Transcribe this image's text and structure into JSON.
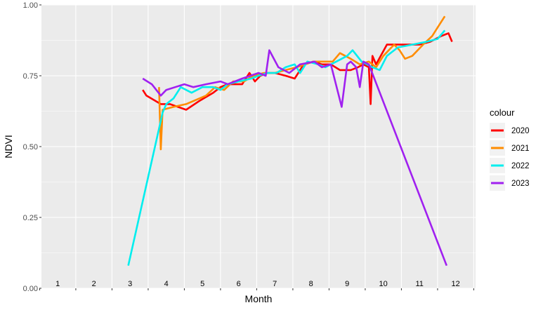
{
  "chart_data": {
    "type": "line",
    "xlabel": "Month",
    "ylabel": "NDVI",
    "xlim": [
      0.55,
      12.55
    ],
    "ylim": [
      0,
      1
    ],
    "x_ticks": [
      {
        "value": 1,
        "label": "1"
      },
      {
        "value": 2,
        "label": "2"
      },
      {
        "value": 3,
        "label": "3"
      },
      {
        "value": 4,
        "label": "4"
      },
      {
        "value": 5,
        "label": "5"
      },
      {
        "value": 6,
        "label": "6"
      },
      {
        "value": 7,
        "label": "7"
      },
      {
        "value": 8,
        "label": "8"
      },
      {
        "value": 9,
        "label": "9"
      },
      {
        "value": 10,
        "label": "10"
      },
      {
        "value": 11,
        "label": "11"
      },
      {
        "value": 12,
        "label": "12"
      }
    ],
    "y_ticks": [
      {
        "value": 0,
        "label": "0.00"
      },
      {
        "value": 0.25,
        "label": "0.25"
      },
      {
        "value": 0.5,
        "label": "0.50"
      },
      {
        "value": 0.75,
        "label": "0.75"
      },
      {
        "value": 1,
        "label": "1.00"
      }
    ],
    "grid": true,
    "background": "#ebebeb",
    "legend": {
      "title": "colour",
      "position": "right"
    },
    "series": [
      {
        "name": "2020",
        "color": "#ff0000",
        "points": [
          [
            3.35,
            0.7
          ],
          [
            3.45,
            0.68
          ],
          [
            3.85,
            0.65
          ],
          [
            4.1,
            0.65
          ],
          [
            4.55,
            0.63
          ],
          [
            4.9,
            0.66
          ],
          [
            5.3,
            0.69
          ],
          [
            5.5,
            0.71
          ],
          [
            5.7,
            0.72
          ],
          [
            6.1,
            0.72
          ],
          [
            6.3,
            0.76
          ],
          [
            6.45,
            0.73
          ],
          [
            6.6,
            0.75
          ],
          [
            6.8,
            0.76
          ],
          [
            7.0,
            0.76
          ],
          [
            7.3,
            0.75
          ],
          [
            7.55,
            0.74
          ],
          [
            7.8,
            0.79
          ],
          [
            8.1,
            0.8
          ],
          [
            8.3,
            0.79
          ],
          [
            8.55,
            0.79
          ],
          [
            8.8,
            0.77
          ],
          [
            9.1,
            0.77
          ],
          [
            9.3,
            0.78
          ],
          [
            9.45,
            0.79
          ],
          [
            9.6,
            0.78
          ],
          [
            9.65,
            0.65
          ],
          [
            9.7,
            0.82
          ],
          [
            9.8,
            0.79
          ],
          [
            10.1,
            0.86
          ],
          [
            10.4,
            0.86
          ],
          [
            10.7,
            0.86
          ],
          [
            11.0,
            0.86
          ],
          [
            11.3,
            0.87
          ],
          [
            11.6,
            0.89
          ],
          [
            11.8,
            0.9
          ],
          [
            11.9,
            0.87
          ]
        ]
      },
      {
        "name": "2021",
        "color": "#ff8c00",
        "points": [
          [
            3.8,
            0.71
          ],
          [
            3.85,
            0.49
          ],
          [
            3.9,
            0.63
          ],
          [
            4.2,
            0.64
          ],
          [
            4.55,
            0.65
          ],
          [
            5.1,
            0.68
          ],
          [
            5.35,
            0.71
          ],
          [
            5.6,
            0.7
          ],
          [
            5.85,
            0.73
          ],
          [
            6.15,
            0.73
          ],
          [
            6.4,
            0.75
          ],
          [
            6.7,
            0.76
          ],
          [
            7.0,
            0.76
          ],
          [
            7.3,
            0.77
          ],
          [
            7.6,
            0.78
          ],
          [
            7.85,
            0.79
          ],
          [
            8.05,
            0.8
          ],
          [
            8.3,
            0.8
          ],
          [
            8.6,
            0.8
          ],
          [
            8.8,
            0.83
          ],
          [
            9.1,
            0.81
          ],
          [
            9.35,
            0.79
          ],
          [
            9.6,
            0.8
          ],
          [
            9.8,
            0.78
          ],
          [
            10.0,
            0.82
          ],
          [
            10.3,
            0.86
          ],
          [
            10.45,
            0.84
          ],
          [
            10.6,
            0.81
          ],
          [
            10.8,
            0.82
          ],
          [
            11.1,
            0.86
          ],
          [
            11.35,
            0.89
          ],
          [
            11.5,
            0.92
          ],
          [
            11.7,
            0.96
          ]
        ]
      },
      {
        "name": "2022",
        "color": "#00eeee",
        "points": [
          [
            2.95,
            0.08
          ],
          [
            3.9,
            0.62
          ],
          [
            4.0,
            0.65
          ],
          [
            4.2,
            0.67
          ],
          [
            4.4,
            0.71
          ],
          [
            4.7,
            0.69
          ],
          [
            5.0,
            0.71
          ],
          [
            5.3,
            0.71
          ],
          [
            5.5,
            0.7
          ],
          [
            5.7,
            0.72
          ],
          [
            6.0,
            0.73
          ],
          [
            6.35,
            0.74
          ],
          [
            6.55,
            0.75
          ],
          [
            6.8,
            0.76
          ],
          [
            7.05,
            0.76
          ],
          [
            7.3,
            0.78
          ],
          [
            7.55,
            0.79
          ],
          [
            7.7,
            0.76
          ],
          [
            7.9,
            0.8
          ],
          [
            8.2,
            0.79
          ],
          [
            8.4,
            0.78
          ],
          [
            8.7,
            0.8
          ],
          [
            9.0,
            0.82
          ],
          [
            9.15,
            0.84
          ],
          [
            9.4,
            0.8
          ],
          [
            9.7,
            0.78
          ],
          [
            9.9,
            0.77
          ],
          [
            10.1,
            0.82
          ],
          [
            10.4,
            0.85
          ],
          [
            10.8,
            0.86
          ],
          [
            11.2,
            0.87
          ],
          [
            11.5,
            0.88
          ],
          [
            11.7,
            0.91
          ]
        ]
      },
      {
        "name": "2023",
        "color": "#a020f0",
        "points": [
          [
            3.35,
            0.74
          ],
          [
            3.6,
            0.72
          ],
          [
            3.85,
            0.68
          ],
          [
            4.0,
            0.7
          ],
          [
            4.5,
            0.72
          ],
          [
            4.75,
            0.71
          ],
          [
            5.1,
            0.72
          ],
          [
            5.5,
            0.73
          ],
          [
            5.7,
            0.72
          ],
          [
            6.1,
            0.74
          ],
          [
            6.55,
            0.76
          ],
          [
            6.75,
            0.75
          ],
          [
            6.85,
            0.84
          ],
          [
            7.1,
            0.78
          ],
          [
            7.4,
            0.76
          ],
          [
            7.7,
            0.79
          ],
          [
            8.1,
            0.8
          ],
          [
            8.3,
            0.78
          ],
          [
            8.55,
            0.79
          ],
          [
            8.85,
            0.64
          ],
          [
            9.0,
            0.79
          ],
          [
            9.1,
            0.8
          ],
          [
            9.25,
            0.78
          ],
          [
            9.35,
            0.71
          ],
          [
            9.45,
            0.8
          ],
          [
            9.6,
            0.79
          ],
          [
            11.75,
            0.08
          ]
        ]
      }
    ]
  }
}
